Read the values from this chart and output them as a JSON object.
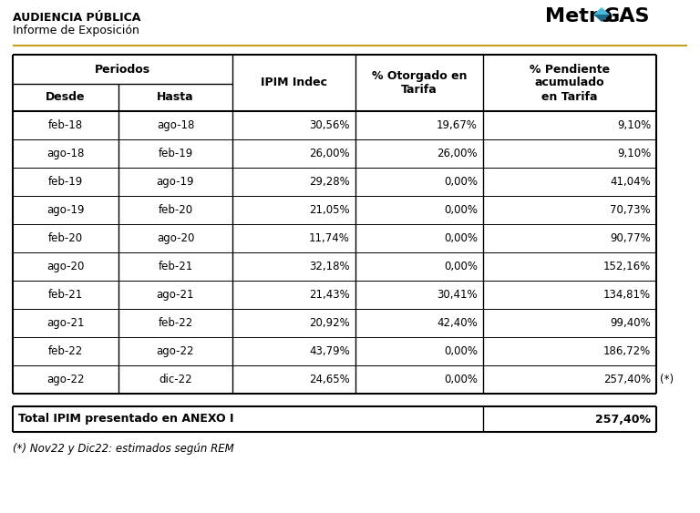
{
  "title_line1": "AUDIENCIA PÚBLICA",
  "title_line2": "Informe de Exposición",
  "header_col1_label": "Periodos",
  "header_desde": "Desde",
  "header_hasta": "Hasta",
  "header_ipim": "IPIM Indec",
  "header_otorgado": "% Otorgado en\nTarifa",
  "header_pendiente": "% Pendiente\nacumulado\nen Tarifa",
  "data_rows": [
    [
      "feb-18",
      "ago-18",
      "30,56%",
      "19,67%",
      "9,10%"
    ],
    [
      "ago-18",
      "feb-19",
      "26,00%",
      "26,00%",
      "9,10%"
    ],
    [
      "feb-19",
      "ago-19",
      "29,28%",
      "0,00%",
      "41,04%"
    ],
    [
      "ago-19",
      "feb-20",
      "21,05%",
      "0,00%",
      "70,73%"
    ],
    [
      "feb-20",
      "ago-20",
      "11,74%",
      "0,00%",
      "90,77%"
    ],
    [
      "ago-20",
      "feb-21",
      "32,18%",
      "0,00%",
      "152,16%"
    ],
    [
      "feb-21",
      "ago-21",
      "21,43%",
      "30,41%",
      "134,81%"
    ],
    [
      "ago-21",
      "feb-22",
      "20,92%",
      "42,40%",
      "99,40%"
    ],
    [
      "feb-22",
      "ago-22",
      "43,79%",
      "0,00%",
      "186,72%"
    ],
    [
      "ago-22",
      "dic-22",
      "24,65%",
      "0,00%",
      "257,40%"
    ]
  ],
  "last_row_note": "(*)",
  "footer_label": "Total IPIM presentado en ANEXO I",
  "footer_value": "257,40%",
  "footnote": "(*) Nov22 y Dic22: estimados según REM",
  "text_color": "#000000",
  "accent_color": "#c8a020",
  "logo_diamond_color1": "#4ab8d8",
  "logo_diamond_color2": "#1a6a8a"
}
